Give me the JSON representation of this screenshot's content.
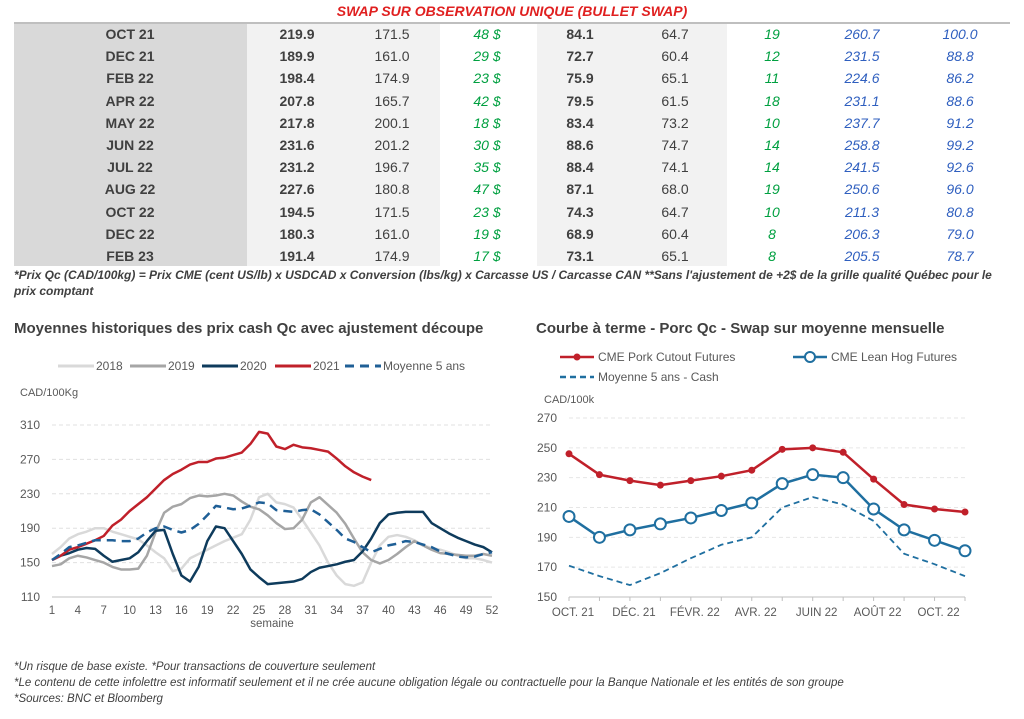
{
  "title": "SWAP SUR OBSERVATION UNIQUE (BULLET SWAP)",
  "table": {
    "rows": [
      [
        "OCT 21",
        "219.9",
        "171.5",
        "48 $",
        "84.1",
        "64.7",
        "19",
        "260.7",
        "100.0"
      ],
      [
        "DEC 21",
        "189.9",
        "161.0",
        "29 $",
        "72.7",
        "60.4",
        "12",
        "231.5",
        "88.8"
      ],
      [
        "FEB 22",
        "198.4",
        "174.9",
        "23 $",
        "75.9",
        "65.1",
        "11",
        "224.6",
        "86.2"
      ],
      [
        "APR 22",
        "207.8",
        "165.7",
        "42 $",
        "79.5",
        "61.5",
        "18",
        "231.1",
        "88.6"
      ],
      [
        "MAY 22",
        "217.8",
        "200.1",
        "18 $",
        "83.4",
        "73.2",
        "10",
        "237.7",
        "91.2"
      ],
      [
        "JUN 22",
        "231.6",
        "201.2",
        "30 $",
        "88.6",
        "74.7",
        "14",
        "258.8",
        "99.2"
      ],
      [
        "JUL 22",
        "231.2",
        "196.7",
        "35 $",
        "88.4",
        "74.1",
        "14",
        "241.5",
        "92.6"
      ],
      [
        "AUG 22",
        "227.6",
        "180.8",
        "47 $",
        "87.1",
        "68.0",
        "19",
        "250.6",
        "96.0"
      ],
      [
        "OCT 22",
        "194.5",
        "171.5",
        "23 $",
        "74.3",
        "64.7",
        "10",
        "211.3",
        "80.8"
      ],
      [
        "DEC 22",
        "180.3",
        "161.0",
        "19 $",
        "68.9",
        "60.4",
        "8",
        "206.3",
        "79.0"
      ],
      [
        "FEB 23",
        "191.4",
        "174.9",
        "17 $",
        "73.1",
        "65.1",
        "8",
        "205.5",
        "78.7"
      ]
    ]
  },
  "note": "*Prix Qc (CAD/100kg) = Prix CME (cent US/lb) x USDCAD x Conversion (lbs/kg) x Carcasse US / Carcasse CAN **Sans l'ajustement de +2$ de la grille qualité Québec pour le prix comptant",
  "footer": [
    "*Un risque de base existe. *Pour transactions de couverture seulement",
    "*Le contenu de cette infolettre est informatif seulement et il ne crée aucune obligation légale ou contractuelle pour la Banque Nationale et les entités de son groupe",
    "*Sources: BNC et Bloomberg"
  ],
  "colors": {
    "title": "#e02020",
    "green": "#00a040",
    "blue": "#2f5fbf"
  },
  "chart_data": [
    {
      "type": "line",
      "title": "Moyennes historiques des prix cash Qc avec ajustement découpe",
      "ylabel": "CAD/100Kg",
      "xlabel": "semaine",
      "ylim": [
        110,
        310
      ],
      "yticks": [
        110,
        150,
        190,
        230,
        270,
        310
      ],
      "xticks": [
        1,
        4,
        7,
        10,
        13,
        16,
        19,
        22,
        25,
        28,
        31,
        34,
        37,
        40,
        43,
        46,
        49,
        52
      ],
      "grid": true,
      "legend": "top",
      "series": [
        {
          "name": "2018",
          "color": "#d9d9d9",
          "dash": false,
          "values": [
            160,
            168,
            178,
            183,
            186,
            190,
            190,
            186,
            183,
            180,
            177,
            170,
            162,
            155,
            140,
            143,
            155,
            160,
            165,
            170,
            175,
            179,
            183,
            200,
            226,
            230,
            220,
            218,
            214,
            200,
            185,
            170,
            150,
            135,
            125,
            123,
            127,
            150,
            170,
            180,
            182,
            180,
            176,
            170,
            167,
            165,
            162,
            158,
            155,
            155,
            153,
            150
          ]
        },
        {
          "name": "2019",
          "color": "#a6a6a6",
          "dash": false,
          "values": [
            146,
            148,
            155,
            158,
            156,
            153,
            150,
            145,
            142,
            142,
            143,
            158,
            185,
            208,
            215,
            218,
            225,
            228,
            227,
            228,
            230,
            228,
            221,
            215,
            212,
            205,
            196,
            189,
            190,
            200,
            220,
            226,
            217,
            208,
            195,
            178,
            162,
            153,
            149,
            153,
            160,
            168,
            175,
            170,
            165,
            161,
            160,
            159,
            158,
            158,
            160,
            158
          ]
        },
        {
          "name": "2020",
          "color": "#0e3b5c",
          "dash": false,
          "values": [
            153,
            158,
            161,
            165,
            167,
            166,
            158,
            151,
            153,
            155,
            162,
            175,
            187,
            188,
            160,
            135,
            128,
            145,
            175,
            192,
            190,
            175,
            160,
            142,
            133,
            125,
            126,
            127,
            128,
            131,
            139,
            144,
            146,
            148,
            151,
            153,
            163,
            178,
            196,
            206,
            208,
            209,
            209,
            209,
            196,
            190,
            184,
            179,
            175,
            171,
            168,
            162
          ]
        },
        {
          "name": "2021",
          "color": "#c0202a",
          "dash": false,
          "values": [
            153,
            158,
            165,
            168,
            172,
            176,
            181,
            193,
            200,
            210,
            218,
            226,
            236,
            246,
            253,
            258,
            264,
            267,
            267,
            271,
            272,
            275,
            278,
            288,
            302,
            300,
            285,
            282,
            287,
            284,
            283,
            281,
            279,
            271,
            262,
            255,
            250,
            246
          ]
        },
        {
          "name": "Moyenne 5 ans",
          "color": "#1f5f96",
          "dash": true,
          "values": [
            153,
            160,
            168,
            170,
            173,
            176,
            176,
            176,
            175,
            175,
            178,
            185,
            190,
            192,
            188,
            185,
            188,
            195,
            205,
            216,
            214,
            212,
            213,
            216,
            220,
            219,
            211,
            210,
            209,
            211,
            212,
            206,
            197,
            188,
            178,
            174,
            168,
            162,
            166,
            170,
            172,
            175,
            174,
            171,
            168,
            163,
            160,
            157,
            156,
            157,
            160,
            162
          ]
        }
      ]
    },
    {
      "type": "line",
      "title": "Courbe à terme - Porc Qc - Swap sur moyenne mensuelle",
      "ylabel": "CAD/100k",
      "ylim": [
        150,
        270
      ],
      "yticks": [
        150,
        170,
        190,
        210,
        230,
        250,
        270
      ],
      "grid": true,
      "legend": "top",
      "categories": [
        "OCT. 21",
        "",
        "DÉC. 21",
        "",
        "FÉVR. 22",
        "",
        "AVR. 22",
        "",
        "JUIN 22",
        "",
        "AOÛT 22",
        "",
        "OCT. 22",
        ""
      ],
      "series": [
        {
          "name": "CME Pork Cutout Futures",
          "color": "#c0202a",
          "marker": "dot",
          "values": [
            246,
            232,
            228,
            225,
            228,
            231,
            235,
            249,
            250,
            247,
            229,
            212,
            209,
            207
          ]
        },
        {
          "name": "CME Lean Hog Futures",
          "color": "#1f6fa0",
          "marker": "circle",
          "values": [
            204,
            190,
            195,
            199,
            203,
            208,
            213,
            226,
            232,
            230,
            209,
            195,
            188,
            181
          ]
        },
        {
          "name": "Moyenne 5 ans - Cash",
          "color": "#1f6fa0",
          "dash": true,
          "values": [
            171,
            164,
            158,
            166,
            176,
            185,
            190,
            210,
            217,
            212,
            201,
            179,
            172,
            164
          ]
        }
      ]
    }
  ]
}
